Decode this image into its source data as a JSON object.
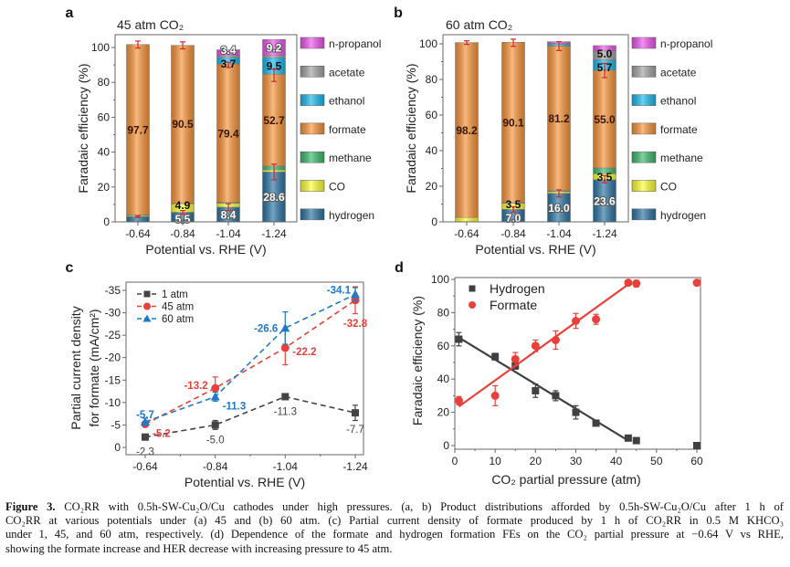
{
  "panel_letters": [
    "a",
    "b",
    "c",
    "d"
  ],
  "chart_data": [
    {
      "type": "bar",
      "stacked": true,
      "title": "45 atm CO₂",
      "xlabel": "Potential vs. RHE (V)",
      "ylabel": "Faradaic efficiency (%)",
      "ylim": [
        0,
        105
      ],
      "yticks": [
        "0",
        "20",
        "40",
        "60",
        "80",
        "100"
      ],
      "categories": [
        "-0.64",
        "-0.84",
        "-1.04",
        "-1.24"
      ],
      "legend_position": "right",
      "series": [
        {
          "name": "hydrogen",
          "color": "#2d74a3",
          "values": [
            3.0,
            5.5,
            8.4,
            28.6
          ]
        },
        {
          "name": "CO",
          "color": "#ffff33",
          "values": [
            0.7,
            4.9,
            2.3,
            1.2
          ]
        },
        {
          "name": "methane",
          "color": "#3cb96a",
          "values": [
            0.3,
            0.3,
            0.5,
            2.2
          ]
        },
        {
          "name": "formate",
          "color": "#f7943a",
          "values": [
            97.7,
            90.5,
            79.4,
            52.7
          ]
        },
        {
          "name": "ethanol",
          "color": "#1ab8ec",
          "values": [
            0,
            0,
            3.7,
            9.5
          ]
        },
        {
          "name": "acetate",
          "color": "#a3a3a3",
          "values": [
            0,
            0,
            1.0,
            1.2
          ]
        },
        {
          "name": "n-propanol",
          "color": "#ee55ee",
          "values": [
            0,
            0,
            3.4,
            9.2
          ]
        }
      ],
      "data_labels": [
        {
          "category": "-0.64",
          "series": "formate",
          "text": "97.7"
        },
        {
          "category": "-0.84",
          "series": "formate",
          "text": "90.5"
        },
        {
          "category": "-0.84",
          "series": "CO",
          "text": "4.9"
        },
        {
          "category": "-0.84",
          "series": "hydrogen",
          "text": "5.5"
        },
        {
          "category": "-1.04",
          "series": "formate",
          "text": "79.4"
        },
        {
          "category": "-1.04",
          "series": "hydrogen",
          "text": "8.4"
        },
        {
          "category": "-1.04",
          "series": "ethanol",
          "text": "3.7"
        },
        {
          "category": "-1.04",
          "series": "n-propanol",
          "text": "3.4"
        },
        {
          "category": "-1.24",
          "series": "formate",
          "text": "52.7"
        },
        {
          "category": "-1.24",
          "series": "hydrogen",
          "text": "28.6"
        },
        {
          "category": "-1.24",
          "series": "ethanol",
          "text": "9.5"
        },
        {
          "category": "-1.24",
          "series": "n-propanol",
          "text": "9.2"
        }
      ],
      "error_bars": [
        {
          "category": "-0.64",
          "value": 101.7,
          "err": 2.0
        },
        {
          "category": "-0.64",
          "value": 3.0,
          "err": 0.5
        },
        {
          "category": "-0.84",
          "value": 101.2,
          "err": 2.0
        },
        {
          "category": "-0.84",
          "value": 5.5,
          "err": 1.0
        },
        {
          "category": "-1.04",
          "value": 90.0,
          "err": 1.5
        },
        {
          "category": "-1.04",
          "value": 8.4,
          "err": 2.0
        },
        {
          "category": "-1.24",
          "value": 84.0,
          "err": 3.5
        },
        {
          "category": "-1.24",
          "value": 28.6,
          "err": 4.5
        }
      ]
    },
    {
      "type": "bar",
      "stacked": true,
      "title": "60 atm CO₂",
      "xlabel": "Potential vs. RHE (V)",
      "ylabel": "Faradaic efficiency (%)",
      "ylim": [
        0,
        105
      ],
      "yticks": [
        "0",
        "20",
        "40",
        "60",
        "80",
        "100"
      ],
      "categories": [
        "-0.64",
        "-0.84",
        "-1.04",
        "-1.24"
      ],
      "legend_position": "right",
      "series": [
        {
          "name": "hydrogen",
          "color": "#2d74a3",
          "values": [
            0,
            7.0,
            16.0,
            23.6
          ]
        },
        {
          "name": "CO",
          "color": "#ffff33",
          "values": [
            2.5,
            3.5,
            1.0,
            3.5
          ]
        },
        {
          "name": "methane",
          "color": "#3cb96a",
          "values": [
            0,
            0.3,
            0.5,
            3.2
          ]
        },
        {
          "name": "formate",
          "color": "#f7943a",
          "values": [
            98.2,
            90.1,
            81.2,
            55.0
          ]
        },
        {
          "name": "ethanol",
          "color": "#1ab8ec",
          "values": [
            0,
            0,
            1.0,
            5.7
          ]
        },
        {
          "name": "acetate",
          "color": "#a3a3a3",
          "values": [
            0,
            0,
            0.5,
            5.0
          ]
        },
        {
          "name": "n-propanol",
          "color": "#ee55ee",
          "values": [
            0,
            0,
            1.0,
            3.0
          ]
        }
      ],
      "data_labels": [
        {
          "category": "-0.64",
          "series": "formate",
          "text": "98.2"
        },
        {
          "category": "-0.84",
          "series": "formate",
          "text": "90.1"
        },
        {
          "category": "-0.84",
          "series": "CO",
          "text": "3.5"
        },
        {
          "category": "-0.84",
          "series": "hydrogen",
          "text": "7.0"
        },
        {
          "category": "-1.04",
          "series": "formate",
          "text": "81.2"
        },
        {
          "category": "-1.04",
          "series": "hydrogen",
          "text": "16.0"
        },
        {
          "category": "-1.24",
          "series": "formate",
          "text": "55.0"
        },
        {
          "category": "-1.24",
          "series": "hydrogen",
          "text": "23.6"
        },
        {
          "category": "-1.24",
          "series": "CO",
          "text": "3.5"
        },
        {
          "category": "-1.24",
          "series": "ethanol",
          "text": "5.7"
        },
        {
          "category": "-1.24",
          "series": "acetate",
          "text": "5.0"
        }
      ],
      "error_bars": [
        {
          "category": "-0.64",
          "value": 100.7,
          "err": 1.0
        },
        {
          "category": "-0.84",
          "value": 100.6,
          "err": 2.0
        },
        {
          "category": "-0.84",
          "value": 7.0,
          "err": 1.5
        },
        {
          "category": "-1.04",
          "value": 98.7,
          "err": 2.5
        },
        {
          "category": "-1.04",
          "value": 16.0,
          "err": 2.0
        },
        {
          "category": "-1.24",
          "value": 85.0,
          "err": 4.0
        },
        {
          "category": "-1.24",
          "value": 24.0,
          "err": 2.0
        }
      ]
    },
    {
      "type": "line",
      "xlabel": "Potential vs. RHE (V)",
      "ylabel_lines": [
        "Partial current density",
        "for formate (mA/cm²)"
      ],
      "x": [
        "-0.64",
        "-0.84",
        "-1.04",
        "-1.24"
      ],
      "ylim": [
        0,
        -35
      ],
      "yticks": [
        "0",
        "-5",
        "-10",
        "-15",
        "-20",
        "-25",
        "-30",
        "-35"
      ],
      "legend_position": "top-left",
      "line_style": "dashed",
      "series": [
        {
          "name": "1 atm",
          "color": "#444444",
          "marker": "square",
          "values": [
            -2.3,
            -5.0,
            -11.3,
            -7.7
          ],
          "errors": [
            0.3,
            1.0,
            0.5,
            1.7
          ],
          "labels": [
            "-2.3",
            "-5.0",
            "-11.3",
            "-7.7"
          ]
        },
        {
          "name": "45 atm",
          "color": "#e8413c",
          "marker": "circle",
          "values": [
            -5.2,
            -13.2,
            -22.2,
            -32.8
          ],
          "errors": [
            0.5,
            2.5,
            3.8,
            3.0
          ],
          "labels": [
            "-5.2",
            "-13.2",
            "-22.2",
            "-32.8"
          ]
        },
        {
          "name": "60 atm",
          "color": "#1f78c8",
          "marker": "triangle",
          "values": [
            -5.7,
            -11.3,
            -26.6,
            -34.1
          ],
          "errors": [
            0.8,
            1.0,
            3.6,
            1.5
          ],
          "labels": [
            "-5.7",
            "-11.3",
            "-26.6",
            "-34.1"
          ]
        }
      ]
    },
    {
      "type": "scatter",
      "xlabel": "CO₂ partial pressure (atm)",
      "ylabel": "Faradaic efficiency (%)",
      "xlim": [
        0,
        61
      ],
      "ylim": [
        -2,
        100
      ],
      "xticks": [
        "0",
        "10",
        "20",
        "30",
        "40",
        "50",
        "60"
      ],
      "yticks": [
        "0",
        "20",
        "40",
        "60",
        "80",
        "100"
      ],
      "legend_position": "top-left",
      "series": [
        {
          "name": "Hydrogen",
          "color": "#404040",
          "marker": "square",
          "x": [
            1,
            10,
            15,
            20,
            25,
            30,
            35,
            43,
            45,
            60
          ],
          "y": [
            64,
            53.5,
            48,
            33,
            30,
            20,
            13.5,
            4.5,
            3,
            0
          ],
          "errors": [
            4,
            2,
            2,
            4,
            3,
            4,
            1.5,
            1,
            0,
            0
          ],
          "fit": {
            "x": [
              1,
              43
            ],
            "y": [
              65,
              3
            ]
          }
        },
        {
          "name": "Formate",
          "color": "#e8413c",
          "marker": "circle",
          "x": [
            1,
            10,
            15,
            20,
            25,
            30,
            35,
            43,
            45,
            60
          ],
          "y": [
            27,
            30,
            52,
            60,
            63.5,
            75,
            76,
            98,
            97.5,
            98
          ],
          "errors": [
            2.5,
            6,
            4,
            3.5,
            5.5,
            4.5,
            3,
            0,
            2,
            0
          ],
          "fit": {
            "x": [
              1,
              43
            ],
            "y": [
              23.5,
              97
            ]
          }
        }
      ]
    }
  ],
  "caption": {
    "label": "Figure 3.",
    "lines": [
      " CO₂RR with 0.5h-SW-Cu₂O/Cu cathodes under high pressures. (a, b) Product distributions afforded by 0.5h-SW-Cu₂O/Cu after 1 h of",
      "CO₂RR at various potentials under (a) 45 and (b) 60 atm. (c) Partial current density of formate produced by 1 h of CO₂RR in 0.5 M KHCO₃",
      "under 1, 45, and 60 atm, respectively. (d) Dependence of the formate and hydrogen formation FEs on the CO₂ partial pressure at −0.64 V vs RHE,",
      "showing the formate increase and HER decrease with increasing pressure to 45 atm."
    ]
  }
}
